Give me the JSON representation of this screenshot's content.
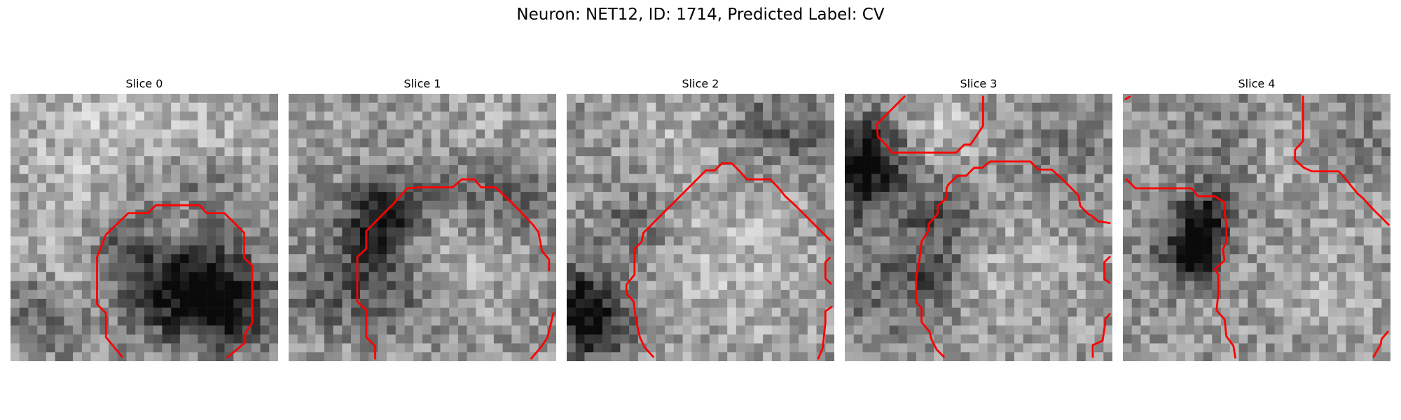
{
  "title": "Neuron: NET12, ID: 1714, Predicted Label: CV",
  "contour_color": "#ff0000",
  "slices": [
    {
      "label": "Slice 0"
    },
    {
      "label": "Slice 1"
    },
    {
      "label": "Slice 2"
    },
    {
      "label": "Slice 3"
    },
    {
      "label": "Slice 4"
    }
  ]
}
